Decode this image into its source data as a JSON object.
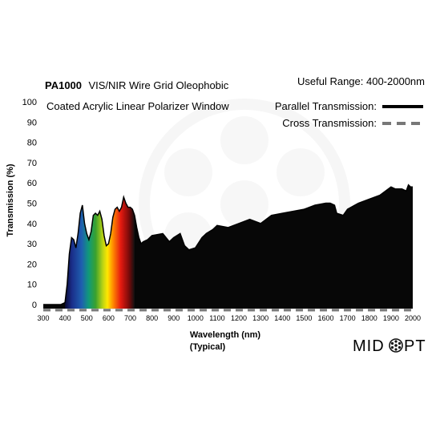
{
  "chart_data": {
    "type": "area",
    "title_bold": "PA1000",
    "title_rest": "VIS/NIR Wire Grid Oleophobic",
    "title_line2": "Coated Acrylic Linear Polarizer Window",
    "useful_range": "Useful Range: 400-2000nm",
    "xlabel": "Wavelength (nm)",
    "xlabel_sub": "(Typical)",
    "ylabel": "Transmission (%)",
    "xlim": [
      300,
      2000
    ],
    "ylim": [
      -2,
      100
    ],
    "x_ticks": [
      "300",
      "400",
      "500",
      "600",
      "700",
      "800",
      "900",
      "1000",
      "1100",
      "1200",
      "1300",
      "1400",
      "1500",
      "1600",
      "1700",
      "1800",
      "1900",
      "2000"
    ],
    "y_ticks": [
      "0",
      "10",
      "20",
      "30",
      "40",
      "50",
      "60",
      "70",
      "80",
      "90",
      "100"
    ],
    "legend_position": "top-right",
    "spectrum_fill_range_nm": [
      400,
      720
    ],
    "series": [
      {
        "name": "Parallel Transmission:",
        "style": "solid",
        "color": "#000000",
        "x": [
          300,
          380,
          400,
          410,
          420,
          430,
          440,
          450,
          460,
          470,
          480,
          490,
          500,
          510,
          520,
          530,
          540,
          550,
          560,
          570,
          580,
          590,
          600,
          610,
          620,
          630,
          640,
          650,
          660,
          670,
          680,
          690,
          700,
          710,
          720,
          730,
          740,
          750,
          760,
          780,
          800,
          850,
          880,
          900,
          930,
          950,
          970,
          1000,
          1030,
          1050,
          1080,
          1100,
          1150,
          1200,
          1250,
          1300,
          1350,
          1400,
          1450,
          1500,
          1550,
          1600,
          1620,
          1640,
          1650,
          1680,
          1700,
          1750,
          1800,
          1850,
          1900,
          1920,
          1950,
          1970,
          1980,
          1990,
          2000
        ],
        "y": [
          0,
          0,
          1,
          10,
          25,
          33,
          32,
          28,
          35,
          45,
          49,
          40,
          35,
          32,
          36,
          44,
          45,
          44,
          46,
          42,
          34,
          29,
          30,
          35,
          43,
          47,
          48,
          46,
          48,
          53,
          50,
          48,
          48,
          47,
          44,
          38,
          33,
          30,
          31,
          32,
          34,
          35,
          31,
          33,
          35,
          29,
          27,
          28,
          33,
          35,
          37,
          39,
          38,
          40,
          42,
          40,
          44,
          45,
          46,
          47,
          49,
          50,
          50,
          49,
          45,
          44,
          47,
          50,
          52,
          54,
          58,
          57,
          57,
          56,
          59,
          58,
          58
        ]
      },
      {
        "name": "Cross Transmission:",
        "style": "dashed",
        "color": "#777777",
        "x": [
          300,
          2000
        ],
        "y": [
          0,
          0
        ]
      }
    ]
  },
  "logo": {
    "text_left": "MID",
    "text_right": "PT"
  }
}
